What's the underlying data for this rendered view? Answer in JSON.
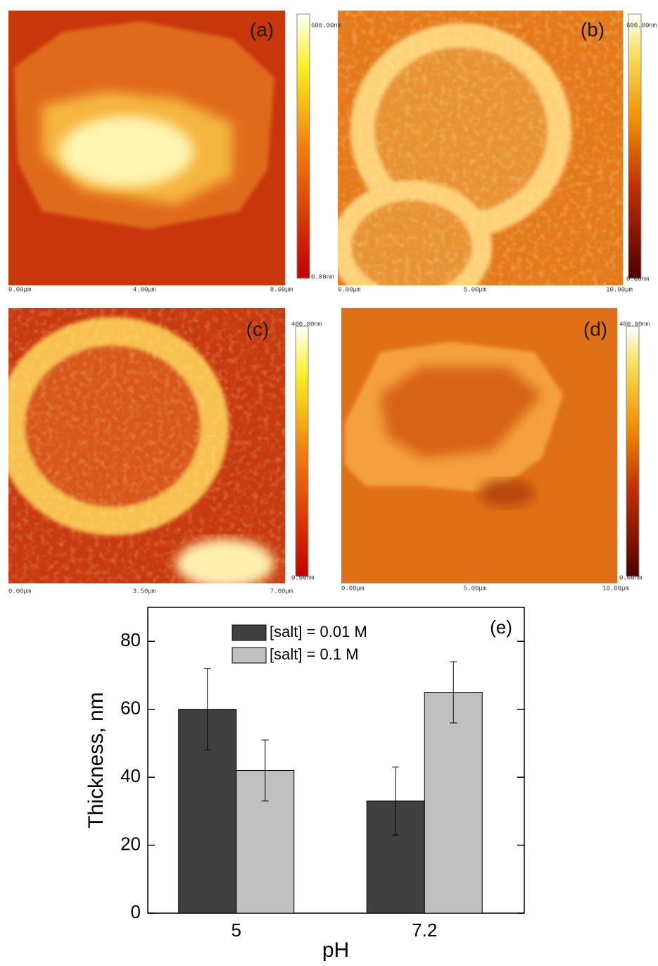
{
  "panels": [
    {
      "label": "(a)",
      "scale_max": "600.00nm",
      "scale_min": "0.00nm",
      "axis": [
        "0.00μm",
        "4.00μm",
        "8.00μm"
      ]
    },
    {
      "label": "(b)",
      "scale_max": "600.00nm",
      "scale_min": "0.00nm",
      "axis": [
        "0.00μm",
        "5.00μm",
        "10.00μm"
      ]
    },
    {
      "label": "(c)",
      "scale_max": "400.00nm",
      "scale_min": "0.00nm",
      "axis": [
        "0.00μm",
        "3.50μm",
        "7.00μm"
      ]
    },
    {
      "label": "(d)",
      "scale_max": "400.00nm",
      "scale_min": "0.00nm",
      "axis": [
        "0.00μm",
        "5.00μm",
        "10.00μm"
      ]
    }
  ],
  "chart_data": {
    "type": "bar",
    "panel_label": "(e)",
    "x_label": "pH",
    "y_label": "Thickness, nm",
    "categories": [
      "5",
      "7.2"
    ],
    "series": [
      {
        "name": "[salt] = 0.01 M",
        "color": "#404040",
        "values": [
          60,
          33
        ],
        "errors": [
          12,
          10
        ]
      },
      {
        "name": "[salt] = 0.1 M",
        "color": "#c0c0c0",
        "values": [
          42,
          65
        ],
        "errors": [
          9,
          9
        ]
      }
    ],
    "ylim": [
      0,
      90
    ],
    "yticks": [
      0,
      20,
      40,
      60,
      80
    ]
  }
}
